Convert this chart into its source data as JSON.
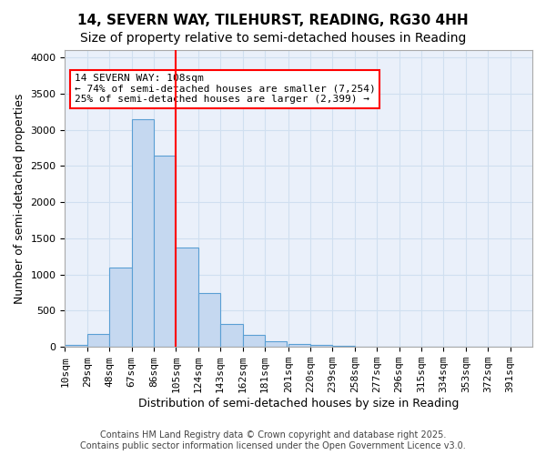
{
  "title1": "14, SEVERN WAY, TILEHURST, READING, RG30 4HH",
  "title2": "Size of property relative to semi-detached houses in Reading",
  "xlabel": "Distribution of semi-detached houses by size in Reading",
  "ylabel": "Number of semi-detached properties",
  "bar_left_edges": [
    10,
    29,
    48,
    67,
    86,
    105,
    124,
    143,
    162,
    181,
    201,
    220,
    239,
    258,
    277,
    296,
    315,
    334,
    353,
    372
  ],
  "bar_heights": [
    30,
    180,
    1090,
    3150,
    2640,
    1370,
    750,
    315,
    160,
    75,
    40,
    30,
    20,
    0,
    0,
    0,
    0,
    0,
    0,
    0
  ],
  "bin_width": 19,
  "tick_labels": [
    "10sqm",
    "29sqm",
    "48sqm",
    "67sqm",
    "86sqm",
    "105sqm",
    "124sqm",
    "143sqm",
    "162sqm",
    "181sqm",
    "201sqm",
    "220sqm",
    "239sqm",
    "258sqm",
    "277sqm",
    "296sqm",
    "315sqm",
    "334sqm",
    "353sqm",
    "372sqm",
    "391sqm"
  ],
  "bar_color": "#c5d8f0",
  "bar_edge_color": "#5a9fd4",
  "vline_x": 105,
  "vline_color": "red",
  "annotation_box_text": "14 SEVERN WAY: 108sqm\n← 74% of semi-detached houses are smaller (7,254)\n25% of semi-detached houses are larger (2,399) →",
  "ylim": [
    0,
    4100
  ],
  "yticks": [
    0,
    500,
    1000,
    1500,
    2000,
    2500,
    3000,
    3500,
    4000
  ],
  "grid_color": "#d0dff0",
  "bg_color": "#eaf0fa",
  "footnote": "Contains HM Land Registry data © Crown copyright and database right 2025.\nContains public sector information licensed under the Open Government Licence v3.0.",
  "title1_fontsize": 11,
  "title2_fontsize": 10,
  "xlabel_fontsize": 9,
  "ylabel_fontsize": 9,
  "tick_fontsize": 8,
  "annotation_fontsize": 8,
  "footnote_fontsize": 7
}
